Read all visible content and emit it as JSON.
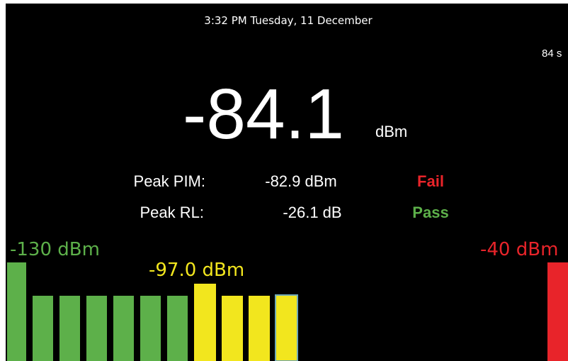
{
  "header": {
    "datetime": "3:32 PM Tuesday, 11 December",
    "timer": "84 s"
  },
  "reading": {
    "value": "-84.1",
    "unit": "dBm"
  },
  "results": {
    "rows": [
      {
        "label": "Peak PIM:",
        "value": "-82.9 dBm",
        "status": "Fail"
      },
      {
        "label": "Peak RL:",
        "value": "-26.1 dB",
        "status": "Pass"
      }
    ]
  },
  "meter": {
    "min_label": "-130 dBm",
    "current_label": "-97.0 dBm",
    "max_label": "-40 dBm"
  }
}
